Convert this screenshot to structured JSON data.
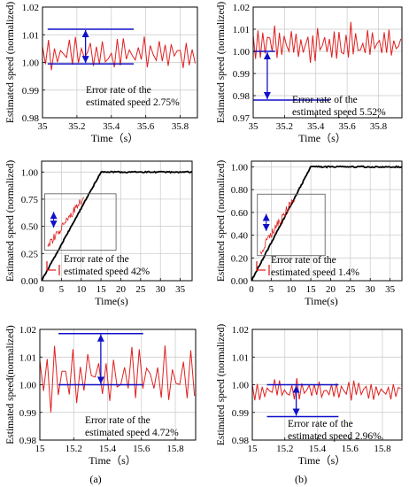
{
  "figure": {
    "column_labels": [
      "(a)",
      "(b)"
    ]
  },
  "chart_data": [
    {
      "id": "row1-a",
      "type": "line",
      "title": "",
      "xlabel": "Time（s）",
      "ylabel": "Estimated speed (normalized)",
      "xlim": [
        35,
        35.9
      ],
      "ylim": [
        0.98,
        1.02
      ],
      "xticks": [
        "35",
        "35.2",
        "35.4",
        "35.6",
        "35.8"
      ],
      "yticks": [
        "0.98",
        "0.99",
        "1.00",
        "1.01",
        "1.02"
      ],
      "grid": true,
      "series": [
        {
          "color": "#e02020",
          "pattern": "oscillation",
          "mean": 1.003,
          "amplitude": 0.006,
          "period": 0.04,
          "x": [
            35,
            35.9
          ]
        }
      ],
      "reference_lines": [
        {
          "y": 1.012,
          "x": [
            35.03,
            35.53
          ]
        },
        {
          "y": 0.9995,
          "x": [
            35.03,
            35.53
          ]
        }
      ],
      "arrows": [
        {
          "x": 35.25,
          "y": [
            0.9995,
            1.012
          ]
        }
      ],
      "annotation": [
        "Error rate of the",
        "estimated speed 2.75%"
      ]
    },
    {
      "id": "row1-b",
      "type": "line",
      "title": "",
      "xlabel": "Time（s）",
      "ylabel": "Estimated speed (normalized)",
      "xlim": [
        35,
        35.95
      ],
      "ylim": [
        0.97,
        1.02
      ],
      "xticks": [
        "35",
        "35.2",
        "35.4",
        "35.6",
        "35.8"
      ],
      "yticks": [
        "0.97",
        "0.98",
        "0.99",
        "1.00",
        "1.01",
        "1.02"
      ],
      "grid": true,
      "series": [
        {
          "color": "#e02020",
          "pattern": "oscillation",
          "mean": 1.003,
          "amplitude": 0.009,
          "period": 0.035,
          "x": [
            35,
            35.95
          ]
        }
      ],
      "reference_lines": [
        {
          "y": 1.0,
          "x": [
            35.0,
            35.14
          ]
        },
        {
          "y": 0.978,
          "x": [
            35.0,
            35.49
          ]
        }
      ],
      "arrows": [
        {
          "x": 35.09,
          "y": [
            0.978,
            1.0
          ]
        }
      ],
      "annotation": [
        "Error rate of the",
        "estimated speed 5.52%"
      ]
    },
    {
      "id": "row2-a",
      "type": "line",
      "title": "",
      "xlabel": "Time(s)",
      "ylabel": "Estimated speed (normalized)",
      "xlim": [
        0,
        38
      ],
      "ylim": [
        0,
        1.1
      ],
      "xticks": [
        "0",
        "5",
        "10",
        "15",
        "20",
        "25",
        "30",
        "35"
      ],
      "yticks": [
        "0.00",
        "0.25",
        "0.50",
        "0.75",
        "1.00"
      ],
      "grid": true,
      "series": [
        {
          "color": "#000000",
          "points": [
            [
              0,
              0
            ],
            [
              15,
              1.0
            ],
            [
              38,
              1.0
            ]
          ]
        }
      ],
      "inset": {
        "x": [
          0.8,
          18.8
        ],
        "y": [
          0.28,
          0.8
        ],
        "color": "#e02020"
      },
      "annotation": [
        "Error rate of the",
        "estimated speed 42%"
      ]
    },
    {
      "id": "row2-b",
      "type": "line",
      "title": "",
      "xlabel": "Time(s)",
      "ylabel": "Estimated speed (normalized)",
      "xlim": [
        0,
        38
      ],
      "ylim": [
        0,
        1.05
      ],
      "xticks": [
        "0",
        "5",
        "10",
        "15",
        "20",
        "25",
        "30",
        "35"
      ],
      "yticks": [
        "0.00",
        "0.20",
        "0.40",
        "0.60",
        "0.80",
        "1.00"
      ],
      "grid": true,
      "series": [
        {
          "color": "#000000",
          "points": [
            [
              0,
              0
            ],
            [
              15,
              1.0
            ],
            [
              38,
              1.0
            ]
          ]
        }
      ],
      "inset": {
        "x": [
          1.5,
          18.6
        ],
        "y": [
          0.22,
          0.76
        ],
        "color": "#e02020"
      },
      "annotation": [
        "Error rate of the",
        "estimated speed 1.4%"
      ]
    },
    {
      "id": "row3-a",
      "type": "line",
      "title": "",
      "xlabel": "Time（s）",
      "ylabel": "Estimated speed(normalized)",
      "xlim": [
        15,
        15.92
      ],
      "ylim": [
        0.98,
        1.02
      ],
      "xticks": [
        "15",
        "15.2",
        "15.4",
        "15.6",
        "15.8"
      ],
      "yticks": [
        "0.98",
        "0.99",
        "1.00",
        "1.01",
        "1.02"
      ],
      "grid": true,
      "series": [
        {
          "color": "#e02020",
          "pattern": "oscillation",
          "mean": 1.003,
          "amplitude": 0.011,
          "period": 0.05,
          "x": [
            15,
            15.92
          ]
        }
      ],
      "reference_lines": [
        {
          "y": 1.0185,
          "x": [
            15.11,
            15.61
          ]
        },
        {
          "y": 1.0,
          "x": [
            15.11,
            15.61
          ]
        }
      ],
      "arrows": [
        {
          "x": 15.36,
          "y": [
            1.0,
            1.0185
          ]
        }
      ],
      "annotation": [
        "Error rate of the",
        "estimated speed 4.72%"
      ]
    },
    {
      "id": "row3-b",
      "type": "line",
      "title": "",
      "xlabel": "Time（s）",
      "ylabel": "Estimated speed (normalized)",
      "xlim": [
        15,
        15.92
      ],
      "ylim": [
        0.98,
        1.02
      ],
      "xticks": [
        "15",
        "15.2",
        "15.4",
        "15.6",
        "15.8"
      ],
      "yticks": [
        "0.98",
        "0.99",
        "1.00",
        "1.01",
        "1.02"
      ],
      "grid": true,
      "series": [
        {
          "color": "#e02020",
          "pattern": "oscillation",
          "mean": 0.998,
          "amplitude": 0.004,
          "period": 0.035,
          "x": [
            15,
            15.92
          ]
        }
      ],
      "reference_lines": [
        {
          "y": 1.0,
          "x": [
            15.09,
            15.53
          ]
        },
        {
          "y": 0.9885,
          "x": [
            15.09,
            15.53
          ]
        }
      ],
      "arrows": [
        {
          "x": 15.27,
          "y": [
            0.9885,
            1.0
          ]
        }
      ],
      "annotation": [
        "Error rate of the",
        "estimated speed 2.96%"
      ]
    }
  ]
}
